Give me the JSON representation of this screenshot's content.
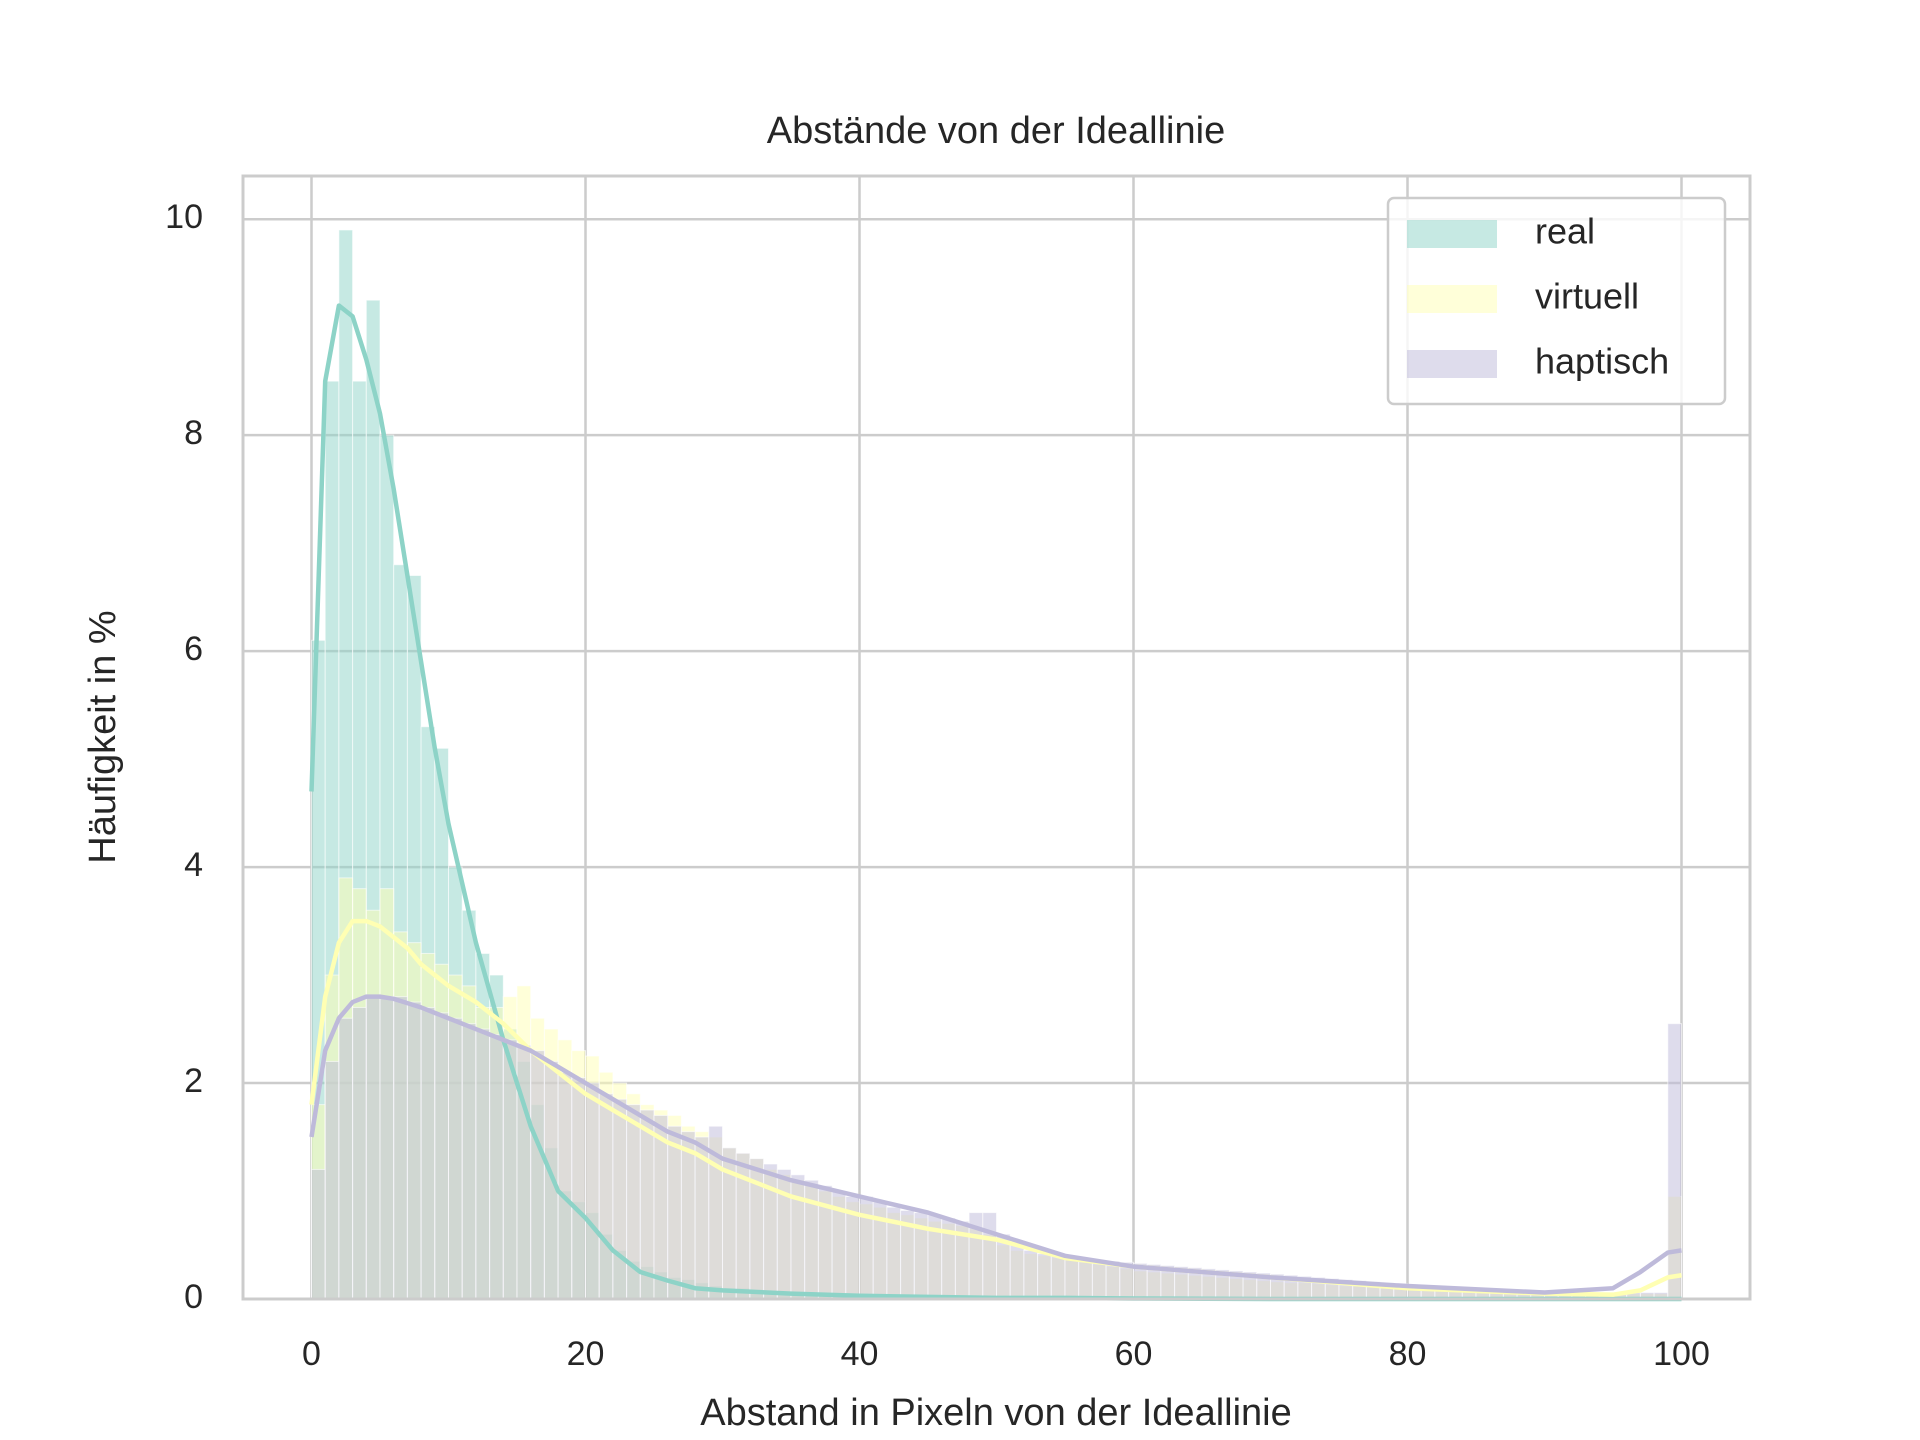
{
  "chart_data": {
    "type": "histogram",
    "title": "Abstände von der Ideallinie",
    "x_label": "Abstand in Pixeln von der Ideallinie",
    "y_label": "Häufigkeit in %",
    "xlim": [
      -5,
      105
    ],
    "ylim": [
      0,
      10.4
    ],
    "xticks": [
      0,
      20,
      40,
      60,
      80,
      100
    ],
    "yticks": [
      0,
      2,
      4,
      6,
      8,
      10
    ],
    "grid": true,
    "legend": "upper right",
    "bins": [
      0,
      1,
      2,
      3,
      4,
      5,
      6,
      7,
      8,
      9,
      10,
      11,
      12,
      13,
      14,
      15,
      16,
      17,
      18,
      19,
      20,
      21,
      22,
      23,
      24,
      25,
      26,
      27,
      28,
      29,
      30,
      31,
      32,
      33,
      34,
      35,
      36,
      37,
      38,
      39,
      40,
      41,
      42,
      43,
      44,
      45,
      46,
      47,
      48,
      49,
      50,
      51,
      52,
      53,
      54,
      55,
      56,
      57,
      58,
      59,
      60,
      61,
      62,
      63,
      64,
      65,
      66,
      67,
      68,
      69,
      70,
      71,
      72,
      73,
      74,
      75,
      76,
      77,
      78,
      79,
      80,
      81,
      82,
      83,
      84,
      85,
      86,
      87,
      88,
      89,
      90,
      91,
      92,
      93,
      94,
      95,
      96,
      97,
      98,
      99,
      100
    ],
    "kde_x": [
      0,
      1,
      2,
      3,
      4,
      5,
      6,
      7,
      8,
      9,
      10,
      12,
      14,
      16,
      18,
      20,
      22,
      24,
      26,
      28,
      30,
      35,
      40,
      45,
      50,
      55,
      60,
      70,
      80,
      90,
      95,
      97,
      99,
      100
    ],
    "series": [
      {
        "name": "real",
        "color": "#8dd3c7",
        "values": [
          6.1,
          8.5,
          9.9,
          8.5,
          9.25,
          8.0,
          6.8,
          6.7,
          5.3,
          5.1,
          4.0,
          3.6,
          3.2,
          3.0,
          2.5,
          2.2,
          1.8,
          1.4,
          1.0,
          0.9,
          0.8,
          0.6,
          0.45,
          0.35,
          0.3,
          0.25,
          0.2,
          0.18,
          0.15,
          0.12,
          0.1,
          0.1,
          0.08,
          0.07,
          0.06,
          0.05,
          0.04,
          0.04,
          0.04,
          0.04,
          0.03,
          0.03,
          0.03,
          0.03,
          0.03,
          0.02,
          0.02,
          0.02,
          0.02,
          0.02,
          0.01,
          0.01,
          0.01,
          0.01,
          0.01,
          0.01,
          0.01,
          0.01,
          0.01,
          0.01,
          0,
          0,
          0,
          0,
          0,
          0,
          0,
          0,
          0,
          0,
          0,
          0,
          0,
          0,
          0,
          0,
          0,
          0,
          0,
          0,
          0,
          0,
          0,
          0,
          0,
          0,
          0,
          0,
          0,
          0,
          0,
          0,
          0,
          0,
          0,
          0,
          0,
          0,
          0,
          0
        ],
        "kde": [
          4.7,
          8.5,
          9.2,
          9.1,
          8.7,
          8.2,
          7.5,
          6.7,
          5.9,
          5.1,
          4.4,
          3.3,
          2.4,
          1.6,
          1.0,
          0.75,
          0.45,
          0.25,
          0.17,
          0.1,
          0.08,
          0.05,
          0.03,
          0.02,
          0.01,
          0.01,
          0.005,
          0,
          0,
          0,
          0,
          0,
          0,
          0
        ]
      },
      {
        "name": "virtuell",
        "color": "#ffffb3",
        "values": [
          1.8,
          3.0,
          3.9,
          3.8,
          3.6,
          3.8,
          3.4,
          3.3,
          3.2,
          3.1,
          3.0,
          2.9,
          2.7,
          2.7,
          2.8,
          2.9,
          2.6,
          2.5,
          2.4,
          2.3,
          2.25,
          2.1,
          2.0,
          1.9,
          1.8,
          1.75,
          1.7,
          1.6,
          1.55,
          1.5,
          1.4,
          1.35,
          1.3,
          1.2,
          1.15,
          1.1,
          1.05,
          1.0,
          0.95,
          0.9,
          0.88,
          0.85,
          0.8,
          0.78,
          0.75,
          0.72,
          0.7,
          0.68,
          0.65,
          0.6,
          0.5,
          0.45,
          0.42,
          0.4,
          0.38,
          0.36,
          0.34,
          0.32,
          0.3,
          0.28,
          0.26,
          0.25,
          0.24,
          0.23,
          0.22,
          0.21,
          0.2,
          0.19,
          0.18,
          0.17,
          0.16,
          0.15,
          0.15,
          0.14,
          0.13,
          0.12,
          0.12,
          0.11,
          0.1,
          0.1,
          0.09,
          0.09,
          0.08,
          0.08,
          0.08,
          0.07,
          0.07,
          0.07,
          0.06,
          0.06,
          0.06,
          0.06,
          0.05,
          0.05,
          0.05,
          0.05,
          0.05,
          0.05,
          0.05,
          0.95
        ],
        "kde": [
          1.8,
          2.8,
          3.3,
          3.5,
          3.5,
          3.45,
          3.35,
          3.25,
          3.1,
          3.0,
          2.9,
          2.75,
          2.55,
          2.3,
          2.1,
          1.9,
          1.75,
          1.6,
          1.45,
          1.35,
          1.2,
          0.95,
          0.78,
          0.65,
          0.55,
          0.38,
          0.3,
          0.2,
          0.1,
          0.05,
          0.04,
          0.08,
          0.2,
          0.22
        ]
      },
      {
        "name": "haptisch",
        "color": "#bebada",
        "values": [
          1.2,
          2.2,
          2.6,
          2.7,
          2.8,
          2.8,
          2.8,
          2.75,
          2.7,
          2.65,
          2.6,
          2.55,
          2.5,
          2.45,
          2.4,
          2.35,
          2.3,
          2.2,
          2.1,
          2.05,
          2.0,
          1.9,
          1.85,
          1.8,
          1.75,
          1.7,
          1.6,
          1.55,
          1.5,
          1.6,
          1.4,
          1.35,
          1.3,
          1.25,
          1.2,
          1.15,
          1.1,
          1.05,
          1.0,
          0.95,
          0.95,
          0.9,
          0.85,
          0.82,
          0.8,
          0.78,
          0.75,
          0.72,
          0.8,
          0.8,
          0.6,
          0.5,
          0.45,
          0.42,
          0.4,
          0.38,
          0.37,
          0.36,
          0.35,
          0.34,
          0.33,
          0.32,
          0.31,
          0.3,
          0.29,
          0.28,
          0.27,
          0.26,
          0.25,
          0.24,
          0.23,
          0.22,
          0.21,
          0.2,
          0.19,
          0.18,
          0.17,
          0.16,
          0.15,
          0.14,
          0.13,
          0.12,
          0.12,
          0.11,
          0.1,
          0.1,
          0.09,
          0.09,
          0.08,
          0.08,
          0.07,
          0.07,
          0.07,
          0.06,
          0.06,
          0.06,
          0.06,
          0.06,
          0.06,
          2.55
        ],
        "kde": [
          1.5,
          2.3,
          2.6,
          2.75,
          2.8,
          2.8,
          2.78,
          2.74,
          2.7,
          2.65,
          2.6,
          2.5,
          2.4,
          2.3,
          2.15,
          2.0,
          1.85,
          1.7,
          1.55,
          1.45,
          1.3,
          1.1,
          0.95,
          0.8,
          0.6,
          0.4,
          0.3,
          0.2,
          0.12,
          0.06,
          0.1,
          0.25,
          0.43,
          0.45
        ]
      }
    ]
  }
}
